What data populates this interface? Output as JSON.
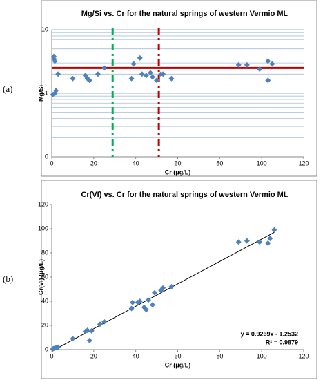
{
  "chart_data": [
    {
      "type": "scatter",
      "panel_label": "(a)",
      "title": "Mg/Si vs. Cr for the natural springs of western Vermio Mt.",
      "x_label": "Cr (μg/L)",
      "y_label": "Mg/Si",
      "color": "#4f81bd",
      "yscale": "log",
      "grid": true,
      "xlim": [
        0,
        120
      ],
      "xticks": [
        0,
        20,
        40,
        60,
        80,
        100,
        120
      ],
      "ylim": [
        0.1,
        10
      ],
      "yticks": [
        {
          "value": 0.1,
          "label": "0"
        },
        1,
        10
      ],
      "yminorticks": [
        0.2,
        0.3,
        0.4,
        0.5,
        0.6,
        0.7,
        0.8,
        0.9,
        2,
        3,
        4,
        5,
        6,
        7,
        8,
        9
      ],
      "hlines": [
        {
          "value": 2.5,
          "color": "#c00000"
        }
      ],
      "vlines": [
        {
          "value": 29,
          "color": "#00b050"
        },
        {
          "value": 51,
          "color": "#c00000"
        }
      ],
      "x": [
        1,
        1,
        1.5,
        0.5,
        1.5,
        2,
        3,
        10,
        16,
        17,
        18,
        22,
        25,
        38,
        39,
        42,
        43,
        45,
        47,
        48,
        50,
        52,
        53,
        57,
        89,
        93,
        99,
        103,
        105,
        103
      ],
      "values": [
        3.8,
        3.5,
        3.2,
        0.95,
        1.0,
        1.1,
        2.0,
        1.7,
        1.9,
        1.7,
        1.6,
        2.0,
        2.5,
        1.7,
        2.9,
        3.6,
        2.0,
        1.9,
        2.1,
        1.8,
        1.6,
        2.0,
        2.0,
        1.7,
        2.8,
        2.8,
        2.4,
        3.2,
        2.9,
        1.6
      ]
    },
    {
      "type": "scatter",
      "panel_label": "(b)",
      "title": "Cr(VI) vs. Cr for the natural springs of western Vermio Mt.",
      "x_label": "Cr (μg/L)",
      "y_label": "Cr(VI) (μg/L)",
      "color": "#4f81bd",
      "grid": false,
      "xlim": [
        0,
        120
      ],
      "xticks": [
        0,
        20,
        40,
        60,
        80,
        100,
        120
      ],
      "ylim": [
        0,
        120
      ],
      "yticks": [
        0,
        20,
        40,
        60,
        80,
        100,
        120
      ],
      "trendline": {
        "slope": 0.9269,
        "intercept": -1.2532,
        "color": "#000000"
      },
      "annotations": [
        "y = 0.9269x - 1.2532",
        "R² = 0.9879"
      ],
      "x": [
        0.5,
        1,
        2,
        3,
        10,
        16,
        17,
        18,
        19,
        23,
        25,
        38,
        38.5,
        41,
        42,
        44,
        45,
        46,
        48,
        49,
        52,
        53,
        57,
        89,
        93,
        99,
        103,
        104,
        106
      ],
      "values": [
        0.5,
        1,
        1.5,
        2,
        9,
        15,
        16,
        7.5,
        15.5,
        21,
        23,
        34,
        39,
        39,
        40,
        35,
        33,
        41,
        37,
        47,
        49,
        51,
        52,
        89,
        90,
        89,
        88,
        92,
        99
      ]
    }
  ]
}
